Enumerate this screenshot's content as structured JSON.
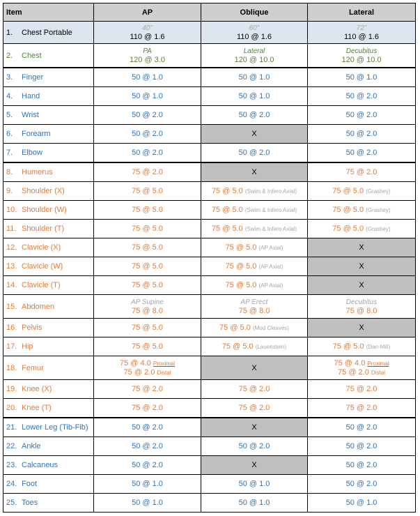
{
  "header": [
    "Item",
    "AP",
    "Oblique",
    "Lateral"
  ],
  "rows": [
    {
      "num": "1.",
      "name": "Chest Portable",
      "color": "black",
      "bg": "#dce6f1",
      "cells": [
        {
          "top": "40\"",
          "value": "110 @ 1.6"
        },
        {
          "top": "60\"",
          "value": "110 @ 1.6"
        },
        {
          "top": "72\"",
          "value": "110 @ 1.6"
        }
      ]
    },
    {
      "num": "2.",
      "name": "Chest",
      "color": "green",
      "thick": true,
      "cells": [
        {
          "top": "PA",
          "value": "120 @ 3.0"
        },
        {
          "top": "Lateral",
          "value": "120 @ 10.0"
        },
        {
          "top": "Decubitus",
          "value": "120 @ 10.0"
        }
      ]
    },
    {
      "num": "3.",
      "name": "Finger",
      "color": "blue",
      "cells": [
        {
          "value": "50 @ 1.0"
        },
        {
          "value": "50 @ 1.0"
        },
        {
          "value": "50 @ 1.0"
        }
      ]
    },
    {
      "num": "4.",
      "name": "Hand",
      "color": "blue",
      "cells": [
        {
          "value": "50 @ 1.0"
        },
        {
          "value": "50 @ 1.0"
        },
        {
          "value": "50 @ 2.0"
        }
      ]
    },
    {
      "num": "5.",
      "name": "Wrist",
      "color": "blue",
      "cells": [
        {
          "value": "50 @ 2.0"
        },
        {
          "value": "50 @ 2.0"
        },
        {
          "value": "50 @ 2.0"
        }
      ]
    },
    {
      "num": "6.",
      "name": "Forearm",
      "color": "blue",
      "cells": [
        {
          "value": "50 @ 2.0"
        },
        {
          "x": "X"
        },
        {
          "value": "50 @ 2.0"
        }
      ]
    },
    {
      "num": "7.",
      "name": "Elbow",
      "color": "blue",
      "thick": true,
      "cells": [
        {
          "value": "50 @ 2.0"
        },
        {
          "value": "50 @ 2.0"
        },
        {
          "value": "50 @ 2.0"
        }
      ]
    },
    {
      "num": "8.",
      "name": "Humerus",
      "color": "orange",
      "cells": [
        {
          "value": "75 @ 2.0"
        },
        {
          "x": "X"
        },
        {
          "value": "75 @ 2.0"
        }
      ]
    },
    {
      "num": "9.",
      "name": "Shoulder (X)",
      "color": "orange",
      "cells": [
        {
          "value": "75 @ 5.0"
        },
        {
          "value": "75 @ 5.0",
          "note": "(Swim & Infero Axial)"
        },
        {
          "value": "75 @ 5.0",
          "note": "(Grashey)"
        }
      ]
    },
    {
      "num": "10.",
      "name": "Shoulder (W)",
      "color": "orange",
      "cells": [
        {
          "value": "75 @ 5.0"
        },
        {
          "value": "75 @ 5.0",
          "note": "(Swim & Infero Axial)"
        },
        {
          "value": "75 @ 5.0",
          "note": "(Grashey)"
        }
      ]
    },
    {
      "num": "11.",
      "name": "Shoulder (T)",
      "color": "orange",
      "cells": [
        {
          "value": "75 @ 5.0"
        },
        {
          "value": "75 @ 5.0",
          "note": "(Swim & Infero Axial)"
        },
        {
          "value": "75 @ 5.0",
          "note": "(Grashey)"
        }
      ]
    },
    {
      "num": "12.",
      "name": "Clavicle (X)",
      "color": "orange",
      "cells": [
        {
          "value": "75 @ 5.0"
        },
        {
          "value": "75 @ 5.0",
          "note": "(AP Axial)"
        },
        {
          "x": "X"
        }
      ]
    },
    {
      "num": "13.",
      "name": "Clavicle (W)",
      "color": "orange",
      "cells": [
        {
          "value": "75 @ 5.0"
        },
        {
          "value": "75 @ 5.0",
          "note": "(AP Axial)"
        },
        {
          "x": "X"
        }
      ]
    },
    {
      "num": "14.",
      "name": "Clavicle (T)",
      "color": "orange",
      "cells": [
        {
          "value": "75 @ 5.0"
        },
        {
          "value": "75 @ 5.0",
          "note": "(AP Axial)"
        },
        {
          "x": "X"
        }
      ]
    },
    {
      "num": "15.",
      "name": "Abdomen",
      "color": "orange",
      "tall": true,
      "cells": [
        {
          "top": "AP Supine",
          "value": "75 @ 8.0"
        },
        {
          "top": "AP Erect",
          "value": "75 @ 8.0"
        },
        {
          "top": "Decubitus",
          "value": "75 @ 8.0"
        }
      ]
    },
    {
      "num": "16.",
      "name": "Pelvis",
      "color": "orange",
      "cells": [
        {
          "value": "75 @ 5.0"
        },
        {
          "value": "75 @ 5.0",
          "note": "(Mod Cleaves)"
        },
        {
          "x": "X"
        }
      ]
    },
    {
      "num": "17.",
      "name": "Hip",
      "color": "orange",
      "cells": [
        {
          "value": "75 @ 5.0"
        },
        {
          "value": "75 @ 5.0",
          "note": "(Lauenstein)"
        },
        {
          "value": "75 @ 5.0",
          "note": "(Dan-Mill)"
        }
      ]
    },
    {
      "num": "18.",
      "name": "Femur",
      "color": "orange",
      "tall": true,
      "cells": [
        {
          "lines": [
            {
              "value": "75 @ 4.0",
              "note": "Proximal"
            },
            {
              "value": "75 @ 2.0",
              "note": "Distal"
            }
          ]
        },
        {
          "x": "X"
        },
        {
          "lines": [
            {
              "value": "75 @ 4.0",
              "note": "Proximal"
            },
            {
              "value": "75 @ 2.0",
              "note": "Distal"
            }
          ]
        }
      ]
    },
    {
      "num": "19.",
      "name": "Knee (X)",
      "color": "orange",
      "cells": [
        {
          "value": "75 @ 2.0"
        },
        {
          "value": "75 @ 2.0"
        },
        {
          "value": "75 @ 2.0"
        }
      ]
    },
    {
      "num": "20.",
      "name": "Knee (T)",
      "color": "orange",
      "thick": true,
      "cells": [
        {
          "value": "75 @ 2.0"
        },
        {
          "value": "75 @ 2.0"
        },
        {
          "value": "75 @ 2.0"
        }
      ]
    },
    {
      "num": "21.",
      "name": "Lower Leg (Tib-Fib)",
      "color": "blue",
      "cells": [
        {
          "value": "50 @ 2.0"
        },
        {
          "x": "X"
        },
        {
          "value": "50 @ 2.0"
        }
      ]
    },
    {
      "num": "22.",
      "name": "Ankle",
      "color": "blue",
      "cells": [
        {
          "value": "50 @ 2.0"
        },
        {
          "value": "50 @ 2.0"
        },
        {
          "value": "50 @ 2.0"
        }
      ]
    },
    {
      "num": "23.",
      "name": "Calcaneus",
      "color": "blue",
      "cells": [
        {
          "value": "50 @ 2.0"
        },
        {
          "x": "X"
        },
        {
          "value": "50 @ 2.0"
        }
      ]
    },
    {
      "num": "24.",
      "name": "Foot",
      "color": "blue",
      "cells": [
        {
          "value": "50 @ 1.0"
        },
        {
          "value": "50 @ 1.0"
        },
        {
          "value": "50 @ 2.0"
        }
      ]
    },
    {
      "num": "25.",
      "name": "Toes",
      "color": "blue",
      "cells": [
        {
          "value": "50 @ 1.0"
        },
        {
          "value": "50 @ 1.0"
        },
        {
          "value": "50 @ 1.0"
        }
      ]
    }
  ]
}
